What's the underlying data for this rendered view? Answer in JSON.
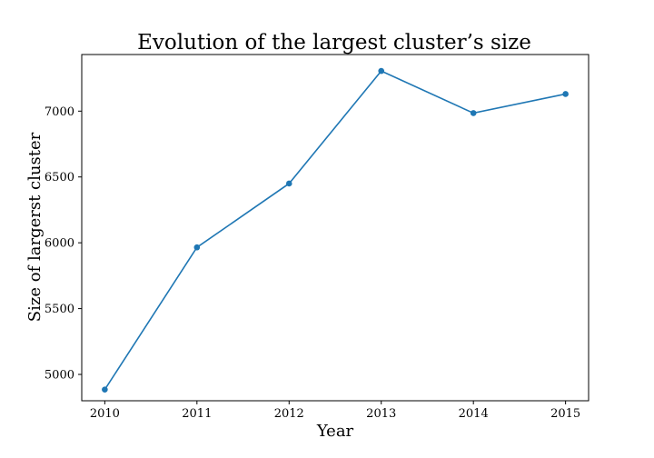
{
  "chart_data": {
    "type": "line",
    "title": "Evolution of the largest cluster’s size",
    "xlabel": "Year",
    "ylabel": "Size of largerst cluster",
    "x": [
      2010,
      2011,
      2012,
      2013,
      2014,
      2015
    ],
    "series": [
      {
        "values": [
          4885,
          5965,
          6450,
          7305,
          6985,
          7130
        ]
      }
    ],
    "x_ticks": [
      "2010",
      "2011",
      "2012",
      "2013",
      "2014",
      "2015"
    ],
    "y_ticks": [
      "5000",
      "5500",
      "6000",
      "6500",
      "7000"
    ],
    "xlim": [
      2009.75,
      2015.25
    ],
    "ylim": [
      4800,
      7430
    ],
    "grid": false,
    "marker": "circle",
    "line_color": "#1f77b4"
  }
}
